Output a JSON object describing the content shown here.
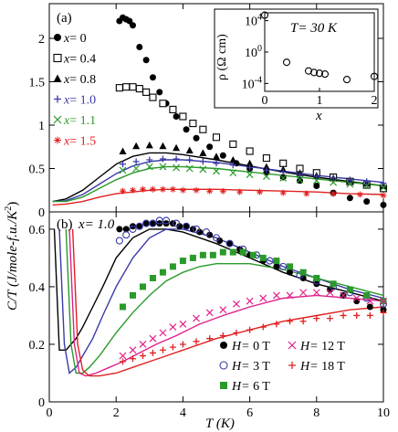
{
  "figure": {
    "ylabel": "C/T (J/mole-f.u./K",
    "ylabel_sup": "2",
    "ylabel_close": ")",
    "xlabel": "T (K)"
  },
  "chart_data": [
    {
      "type": "scatter",
      "panel_label": "(a)",
      "xlim": [
        0,
        10
      ],
      "ylim": [
        0,
        2.4
      ],
      "yticks": [
        "0",
        "0.5",
        "1",
        "1.5",
        "2"
      ],
      "ytick_values": [
        0,
        0.5,
        1,
        1.5,
        2
      ],
      "xticks": [
        0,
        2,
        4,
        6,
        8,
        10
      ],
      "legend_placement": "top-left",
      "series": [
        {
          "name": "x= 0",
          "marker": "filled-circle",
          "color": "#000000",
          "x": [
            2.1,
            2.2,
            2.3,
            2.4,
            2.5,
            2.7,
            2.9,
            3.1,
            3.3,
            3.5,
            3.8,
            4.1,
            4.4,
            4.8,
            5.2,
            5.6,
            6.0,
            6.5,
            7.0,
            7.5,
            8.0,
            8.5,
            9.0,
            9.5,
            10.0
          ],
          "y": [
            2.2,
            2.24,
            2.22,
            2.2,
            2.15,
            1.9,
            1.75,
            1.55,
            1.38,
            1.25,
            1.1,
            0.95,
            0.85,
            0.75,
            0.65,
            0.56,
            0.5,
            0.45,
            0.4,
            0.36,
            0.3,
            0.22,
            0.16,
            0.12,
            0.08
          ]
        },
        {
          "name": "x= 0.4",
          "marker": "open-square",
          "color": "#000000",
          "x": [
            2.1,
            2.3,
            2.5,
            2.7,
            2.9,
            3.1,
            3.4,
            3.7,
            4.0,
            4.3,
            4.6,
            5.0,
            5.5,
            6.0,
            6.5,
            7.0,
            7.5,
            8.0,
            8.5,
            9.0,
            9.5,
            10.0
          ],
          "y": [
            1.43,
            1.44,
            1.44,
            1.42,
            1.38,
            1.32,
            1.25,
            1.18,
            1.1,
            1.02,
            0.95,
            0.86,
            0.78,
            0.7,
            0.62,
            0.56,
            0.5,
            0.45,
            0.4,
            0.35,
            0.31,
            0.27
          ]
        },
        {
          "name": "x= 0.8",
          "marker": "filled-triangle",
          "color": "#000000",
          "x": [
            2.2,
            2.6,
            3.0,
            3.4,
            3.8,
            4.2,
            4.6,
            5.0,
            5.5,
            6.0,
            6.5,
            7.0,
            7.5,
            8.0,
            8.5,
            9.0,
            9.5,
            10.0
          ],
          "y": [
            0.7,
            0.76,
            0.77,
            0.76,
            0.74,
            0.71,
            0.68,
            0.64,
            0.6,
            0.56,
            0.52,
            0.49,
            0.45,
            0.42,
            0.39,
            0.36,
            0.33,
            0.3
          ]
        },
        {
          "name": "x= 1.0",
          "marker": "plus",
          "color": "#3a3aa8",
          "x": [
            2.2,
            2.6,
            3.0,
            3.4,
            3.8,
            4.2,
            4.6,
            5.0,
            5.5,
            6.0,
            6.5,
            7.0,
            7.5,
            8.0,
            8.5,
            9.0,
            9.5,
            10.0
          ],
          "y": [
            0.55,
            0.58,
            0.6,
            0.61,
            0.61,
            0.6,
            0.58,
            0.56,
            0.54,
            0.51,
            0.48,
            0.46,
            0.43,
            0.41,
            0.39,
            0.37,
            0.35,
            0.33
          ]
        },
        {
          "name": "x= 1.1",
          "marker": "cross",
          "color": "#2a9a2a",
          "x": [
            2.2,
            2.6,
            3.0,
            3.4,
            3.8,
            4.2,
            4.6,
            5.0,
            5.5,
            6.0,
            6.5,
            7.0,
            7.5,
            8.0,
            8.5,
            9.0,
            9.5,
            10.0
          ],
          "y": [
            0.48,
            0.5,
            0.52,
            0.52,
            0.51,
            0.5,
            0.49,
            0.47,
            0.45,
            0.43,
            0.41,
            0.39,
            0.37,
            0.36,
            0.34,
            0.32,
            0.3,
            0.28
          ]
        },
        {
          "name": "x= 1.5",
          "marker": "asterisk",
          "color": "#e02020",
          "x": [
            2.2,
            2.5,
            2.8,
            3.1,
            3.4,
            3.7,
            4.0,
            4.4,
            4.8,
            5.2,
            5.7,
            6.3,
            7.0,
            7.7,
            8.5,
            9.3,
            10.0
          ],
          "y": [
            0.24,
            0.25,
            0.26,
            0.26,
            0.26,
            0.26,
            0.25,
            0.25,
            0.24,
            0.24,
            0.23,
            0.23,
            0.22,
            0.21,
            0.21,
            0.2,
            0.19
          ]
        }
      ],
      "fit_curves": [
        {
          "color": "#000000",
          "x": [
            0.1,
            0.5,
            1.0,
            1.5,
            2.0,
            2.5,
            3.0,
            3.5,
            4.0,
            5.0,
            6.0,
            7.0,
            8.0,
            9.0,
            10.0
          ],
          "y": [
            0.12,
            0.15,
            0.25,
            0.4,
            0.55,
            0.64,
            0.68,
            0.68,
            0.66,
            0.6,
            0.53,
            0.46,
            0.4,
            0.35,
            0.3
          ]
        },
        {
          "color": "#3a3aa8",
          "x": [
            0.1,
            0.5,
            1.0,
            1.5,
            2.0,
            2.5,
            3.0,
            3.5,
            4.0,
            5.0,
            6.0,
            7.0,
            8.0,
            9.0,
            10.0
          ],
          "y": [
            0.12,
            0.13,
            0.2,
            0.32,
            0.44,
            0.53,
            0.58,
            0.6,
            0.6,
            0.57,
            0.52,
            0.47,
            0.42,
            0.38,
            0.34
          ]
        },
        {
          "color": "#2a9a2a",
          "x": [
            0.1,
            0.5,
            1.0,
            1.5,
            2.0,
            2.5,
            3.0,
            3.5,
            4.0,
            5.0,
            6.0,
            7.0,
            8.0,
            9.0,
            10.0
          ],
          "y": [
            0.12,
            0.12,
            0.17,
            0.27,
            0.37,
            0.45,
            0.5,
            0.52,
            0.52,
            0.5,
            0.46,
            0.42,
            0.38,
            0.34,
            0.3
          ]
        },
        {
          "color": "#e02020",
          "x": [
            0.1,
            0.5,
            1.0,
            1.5,
            2.0,
            2.5,
            3.0,
            3.5,
            4.0,
            5.0,
            6.0,
            7.0,
            8.0,
            9.0,
            10.0
          ],
          "y": [
            0.08,
            0.09,
            0.12,
            0.17,
            0.21,
            0.23,
            0.25,
            0.26,
            0.26,
            0.26,
            0.25,
            0.24,
            0.23,
            0.21,
            0.2
          ]
        }
      ]
    },
    {
      "type": "scatter",
      "panel_label": "(b)",
      "annotation": "x= 1.0",
      "xlim": [
        0,
        10
      ],
      "ylim": [
        0,
        0.66
      ],
      "yticks": [
        "0",
        "0.2",
        "0.4",
        "0.6"
      ],
      "ytick_values": [
        0,
        0.2,
        0.4,
        0.6
      ],
      "xticks": [
        "0",
        "2",
        "4",
        "6",
        "8",
        "10"
      ],
      "xtick_values": [
        0,
        2,
        4,
        6,
        8,
        10
      ],
      "legend_placement": "bottom-right",
      "legend": [
        {
          "prefix": "H=",
          "value": "0 T"
        },
        {
          "prefix": "H=",
          "value": "3 T"
        },
        {
          "prefix": "H=",
          "value": "6 T"
        },
        {
          "prefix": "H=",
          "value": "12 T"
        },
        {
          "prefix": "H=",
          "value": "18 T"
        }
      ],
      "series": [
        {
          "name": "H= 0 T",
          "marker": "filled-circle",
          "color": "#000000",
          "x": [
            2.1,
            2.3,
            2.5,
            2.7,
            2.9,
            3.1,
            3.3,
            3.5,
            3.7,
            3.9,
            4.1,
            4.3,
            4.5,
            4.8,
            5.1,
            5.4,
            5.7,
            6.0,
            6.4,
            6.8,
            7.2,
            7.6,
            8.0,
            8.4,
            8.8,
            9.2,
            9.6,
            10.0
          ],
          "y": [
            0.6,
            0.6,
            0.61,
            0.61,
            0.62,
            0.62,
            0.62,
            0.62,
            0.62,
            0.61,
            0.61,
            0.6,
            0.59,
            0.58,
            0.56,
            0.55,
            0.53,
            0.51,
            0.49,
            0.47,
            0.45,
            0.43,
            0.41,
            0.39,
            0.37,
            0.35,
            0.33,
            0.32
          ]
        },
        {
          "name": "H= 3 T",
          "marker": "open-circle",
          "color": "#3a3aa8",
          "x": [
            2.1,
            2.3,
            2.5,
            2.7,
            2.9,
            3.1,
            3.3,
            3.5,
            3.8,
            4.1,
            4.4,
            4.7,
            5.0,
            5.4,
            5.8,
            6.2,
            6.6,
            7.0,
            7.5,
            8.0,
            8.5,
            9.0,
            9.5,
            10.0
          ],
          "y": [
            0.56,
            0.58,
            0.6,
            0.61,
            0.62,
            0.62,
            0.63,
            0.63,
            0.62,
            0.61,
            0.6,
            0.59,
            0.57,
            0.55,
            0.53,
            0.51,
            0.49,
            0.47,
            0.44,
            0.42,
            0.4,
            0.38,
            0.36,
            0.34
          ]
        },
        {
          "name": "H= 6 T",
          "marker": "filled-square",
          "color": "#2a9a2a",
          "x": [
            2.2,
            2.5,
            2.8,
            3.1,
            3.4,
            3.7,
            4.0,
            4.3,
            4.6,
            4.9,
            5.2,
            5.5,
            5.8,
            6.1,
            6.4,
            6.8,
            7.2,
            7.6,
            8.0,
            8.5,
            9.0,
            9.5,
            10.0
          ],
          "y": [
            0.33,
            0.37,
            0.4,
            0.43,
            0.45,
            0.47,
            0.49,
            0.5,
            0.51,
            0.51,
            0.52,
            0.52,
            0.52,
            0.51,
            0.5,
            0.49,
            0.47,
            0.45,
            0.43,
            0.41,
            0.39,
            0.37,
            0.35
          ]
        },
        {
          "name": "H= 12 T",
          "marker": "cross",
          "color": "#e0208a",
          "x": [
            2.2,
            2.5,
            2.8,
            3.1,
            3.4,
            3.7,
            4.0,
            4.4,
            4.8,
            5.2,
            5.6,
            6.0,
            6.4,
            6.8,
            7.2,
            7.6,
            8.0,
            8.4,
            8.8,
            9.2,
            9.6,
            10.0
          ],
          "y": [
            0.16,
            0.18,
            0.2,
            0.22,
            0.24,
            0.26,
            0.27,
            0.29,
            0.31,
            0.32,
            0.34,
            0.35,
            0.36,
            0.37,
            0.37,
            0.38,
            0.38,
            0.38,
            0.37,
            0.36,
            0.35,
            0.35
          ]
        },
        {
          "name": "H= 18 T",
          "marker": "plus",
          "color": "#e02020",
          "x": [
            2.2,
            2.5,
            2.8,
            3.1,
            3.4,
            3.7,
            4.0,
            4.4,
            4.8,
            5.2,
            5.6,
            6.0,
            6.4,
            6.8,
            7.2,
            7.6,
            8.0,
            8.4,
            8.8,
            9.2,
            9.6,
            10.0
          ],
          "y": [
            0.14,
            0.15,
            0.16,
            0.17,
            0.18,
            0.19,
            0.2,
            0.21,
            0.22,
            0.23,
            0.24,
            0.25,
            0.26,
            0.27,
            0.28,
            0.28,
            0.29,
            0.29,
            0.3,
            0.3,
            0.3,
            0.31
          ]
        }
      ],
      "fit_curves": [
        {
          "color": "#000000",
          "x": [
            0.15,
            0.3,
            0.5,
            0.8,
            1.0,
            1.3,
            1.6,
            2.0,
            2.5,
            3.0,
            3.5,
            4.0,
            5.0,
            6.0,
            7.0,
            8.0,
            9.0,
            10.0
          ],
          "y": [
            0.6,
            0.18,
            0.18,
            0.22,
            0.26,
            0.33,
            0.4,
            0.5,
            0.57,
            0.6,
            0.6,
            0.59,
            0.55,
            0.5,
            0.45,
            0.41,
            0.38,
            0.35
          ]
        },
        {
          "color": "#3a3aa8",
          "x": [
            0.3,
            0.45,
            0.6,
            0.8,
            1.0,
            1.3,
            1.6,
            2.0,
            2.5,
            3.0,
            3.5,
            4.0,
            5.0,
            6.0,
            7.0,
            8.0,
            9.0,
            10.0
          ],
          "y": [
            0.6,
            0.2,
            0.1,
            0.12,
            0.16,
            0.22,
            0.3,
            0.4,
            0.5,
            0.57,
            0.6,
            0.6,
            0.57,
            0.52,
            0.47,
            0.43,
            0.39,
            0.36
          ]
        },
        {
          "color": "#2a9a2a",
          "x": [
            0.5,
            0.65,
            0.8,
            1.0,
            1.2,
            1.5,
            2.0,
            2.5,
            3.0,
            3.5,
            4.0,
            4.5,
            5.0,
            6.0,
            7.0,
            8.0,
            9.0,
            10.0
          ],
          "y": [
            0.6,
            0.2,
            0.1,
            0.1,
            0.12,
            0.16,
            0.24,
            0.31,
            0.37,
            0.42,
            0.45,
            0.47,
            0.48,
            0.48,
            0.46,
            0.43,
            0.4,
            0.37
          ]
        },
        {
          "color": "#e0208a",
          "x": [
            0.6,
            0.75,
            0.9,
            1.1,
            1.4,
            1.8,
            2.2,
            2.7,
            3.2,
            3.8,
            4.5,
            5.2,
            6.0,
            7.0,
            8.0,
            9.0,
            10.0
          ],
          "y": [
            0.6,
            0.2,
            0.1,
            0.09,
            0.1,
            0.12,
            0.14,
            0.17,
            0.2,
            0.23,
            0.27,
            0.3,
            0.33,
            0.36,
            0.37,
            0.36,
            0.35
          ]
        },
        {
          "color": "#e02020",
          "x": [
            0.7,
            0.85,
            1.0,
            1.2,
            1.5,
            2.0,
            2.5,
            3.0,
            3.5,
            4.0,
            5.0,
            6.0,
            7.0,
            8.0,
            9.0,
            10.0
          ],
          "y": [
            0.6,
            0.2,
            0.11,
            0.09,
            0.09,
            0.1,
            0.12,
            0.14,
            0.16,
            0.18,
            0.22,
            0.25,
            0.28,
            0.3,
            0.32,
            0.33
          ]
        }
      ]
    },
    {
      "type": "scatter",
      "panel_label": "inset",
      "title": "T= 30 K",
      "xlabel": "x",
      "ylabel": "ρ (Ω cm)",
      "yscale": "log",
      "xlim": [
        0,
        2
      ],
      "ylim_exponent": [
        -5,
        5
      ],
      "xticks": [
        "0",
        "1",
        "2"
      ],
      "xtick_values": [
        0,
        1,
        2
      ],
      "ytick_base": "10",
      "yticks_exponent": [
        "4",
        "0",
        "-4"
      ],
      "ytick_exponent_values": [
        4,
        0,
        -4
      ],
      "series": [
        {
          "marker": "open-circle",
          "color": "#000000",
          "x": [
            0,
            0.4,
            0.8,
            0.9,
            1.0,
            1.1,
            1.5,
            2.0
          ],
          "log10_y": [
            4.7,
            -1.3,
            -2.4,
            -2.6,
            -2.7,
            -2.8,
            -3.5,
            -3.1
          ]
        }
      ]
    }
  ]
}
